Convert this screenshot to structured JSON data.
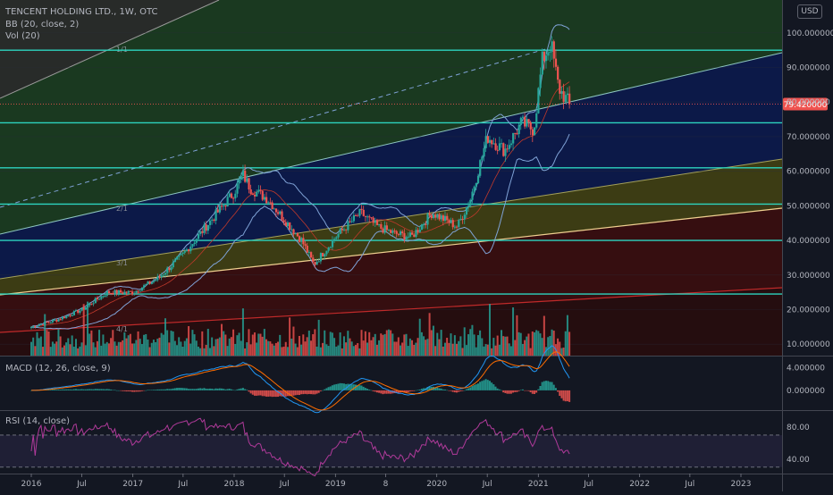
{
  "header": {
    "symbol_line": "TENCENT HOLDING LTD., 1W, OTC",
    "bb_label": "BB (20, close, 2)",
    "vol_label": "Vol (20)",
    "currency": "USD"
  },
  "macd_label": "MACD (12, 26, close, 9)",
  "rsi_label": "RSI (14, close)",
  "colors": {
    "background": "#131722",
    "up": "#26a69a",
    "down": "#ef5350",
    "grid": "#2a2e39",
    "price_badge": "#ef5350",
    "fib_line": "#2dd4bf",
    "bb": "#7fa2d6",
    "macd": "#2196f3",
    "signal": "#ff6d00",
    "rsi": "#b03a9a"
  },
  "chart_data": {
    "type": "candlestick",
    "main": {
      "y_axis_ticks": [
        "100.000000",
        "90.000000",
        "80.000000",
        "70.000000",
        "60.000000",
        "50.000000",
        "40.000000",
        "30.000000",
        "20.000000",
        "10.000000"
      ],
      "y_axis_values": [
        100,
        90,
        80,
        70,
        60,
        50,
        40,
        30,
        20,
        10
      ],
      "ylim": [
        6.7,
        109.5
      ],
      "last_price": 79.42,
      "last_price_label": "79.420000",
      "fib_levels": [
        95,
        74,
        61,
        50.5,
        40,
        24.5
      ],
      "gann_labels": [
        "1/1",
        "2/1",
        "3/1",
        "4/1"
      ],
      "ohlc_points": [
        {
          "d": "2016-01-01",
          "c": 15
        },
        {
          "d": "2016-04-01",
          "c": 17
        },
        {
          "d": "2016-07-01",
          "c": 20
        },
        {
          "d": "2016-10-01",
          "c": 25
        },
        {
          "d": "2017-01-01",
          "c": 25
        },
        {
          "d": "2017-04-01",
          "c": 29
        },
        {
          "d": "2017-07-01",
          "c": 36
        },
        {
          "d": "2017-10-01",
          "c": 45
        },
        {
          "d": "2018-01-01",
          "c": 54
        },
        {
          "d": "2018-02-01",
          "c": 59
        },
        {
          "d": "2018-03-01",
          "c": 55
        },
        {
          "d": "2018-05-01",
          "c": 52
        },
        {
          "d": "2018-07-01",
          "c": 46
        },
        {
          "d": "2018-09-01",
          "c": 40
        },
        {
          "d": "2018-10-15",
          "c": 33
        },
        {
          "d": "2019-01-01",
          "c": 41
        },
        {
          "d": "2019-04-01",
          "c": 48
        },
        {
          "d": "2019-06-01",
          "c": 44
        },
        {
          "d": "2019-08-01",
          "c": 42
        },
        {
          "d": "2019-10-01",
          "c": 41
        },
        {
          "d": "2019-12-15",
          "c": 48
        },
        {
          "d": "2020-03-15",
          "c": 44
        },
        {
          "d": "2020-05-01",
          "c": 52
        },
        {
          "d": "2020-07-01",
          "c": 70
        },
        {
          "d": "2020-09-01",
          "c": 66
        },
        {
          "d": "2020-11-01",
          "c": 74
        },
        {
          "d": "2020-12-15",
          "c": 72
        },
        {
          "d": "2021-01-15",
          "c": 92
        },
        {
          "d": "2021-02-15",
          "c": 97
        },
        {
          "d": "2021-03-15",
          "c": 84
        },
        {
          "d": "2021-04-23",
          "c": 79.4
        }
      ]
    },
    "volume_label": "Vol (20)",
    "macd": {
      "label": "MACD (12, 26, close, 9)",
      "y_axis_ticks": [
        "4.000000",
        "0.000000"
      ],
      "y_axis_values": [
        4,
        0
      ],
      "ylim": [
        -3.5,
        6.0
      ]
    },
    "rsi": {
      "label": "RSI (14, close)",
      "y_axis_ticks": [
        "80.00",
        "40.00"
      ],
      "y_axis_values": [
        80,
        40
      ],
      "ylim": [
        22,
        100
      ],
      "bands": [
        70,
        30
      ]
    },
    "x_axis": {
      "ticks": [
        "2016",
        "Jul",
        "2017",
        "Jul",
        "2018",
        "Jul",
        "2019",
        "8",
        "2020",
        "Jul",
        "2021",
        "Jul",
        "2022",
        "Jul",
        "2023"
      ],
      "tick_dates": [
        "2016-01-01",
        "2016-07-01",
        "2017-01-01",
        "2017-07-01",
        "2018-01-01",
        "2018-07-01",
        "2019-01-01",
        "2019-07-01",
        "2020-01-01",
        "2020-07-01",
        "2021-01-01",
        "2021-07-01",
        "2022-01-01",
        "2022-07-01",
        "2023-01-01"
      ]
    }
  }
}
